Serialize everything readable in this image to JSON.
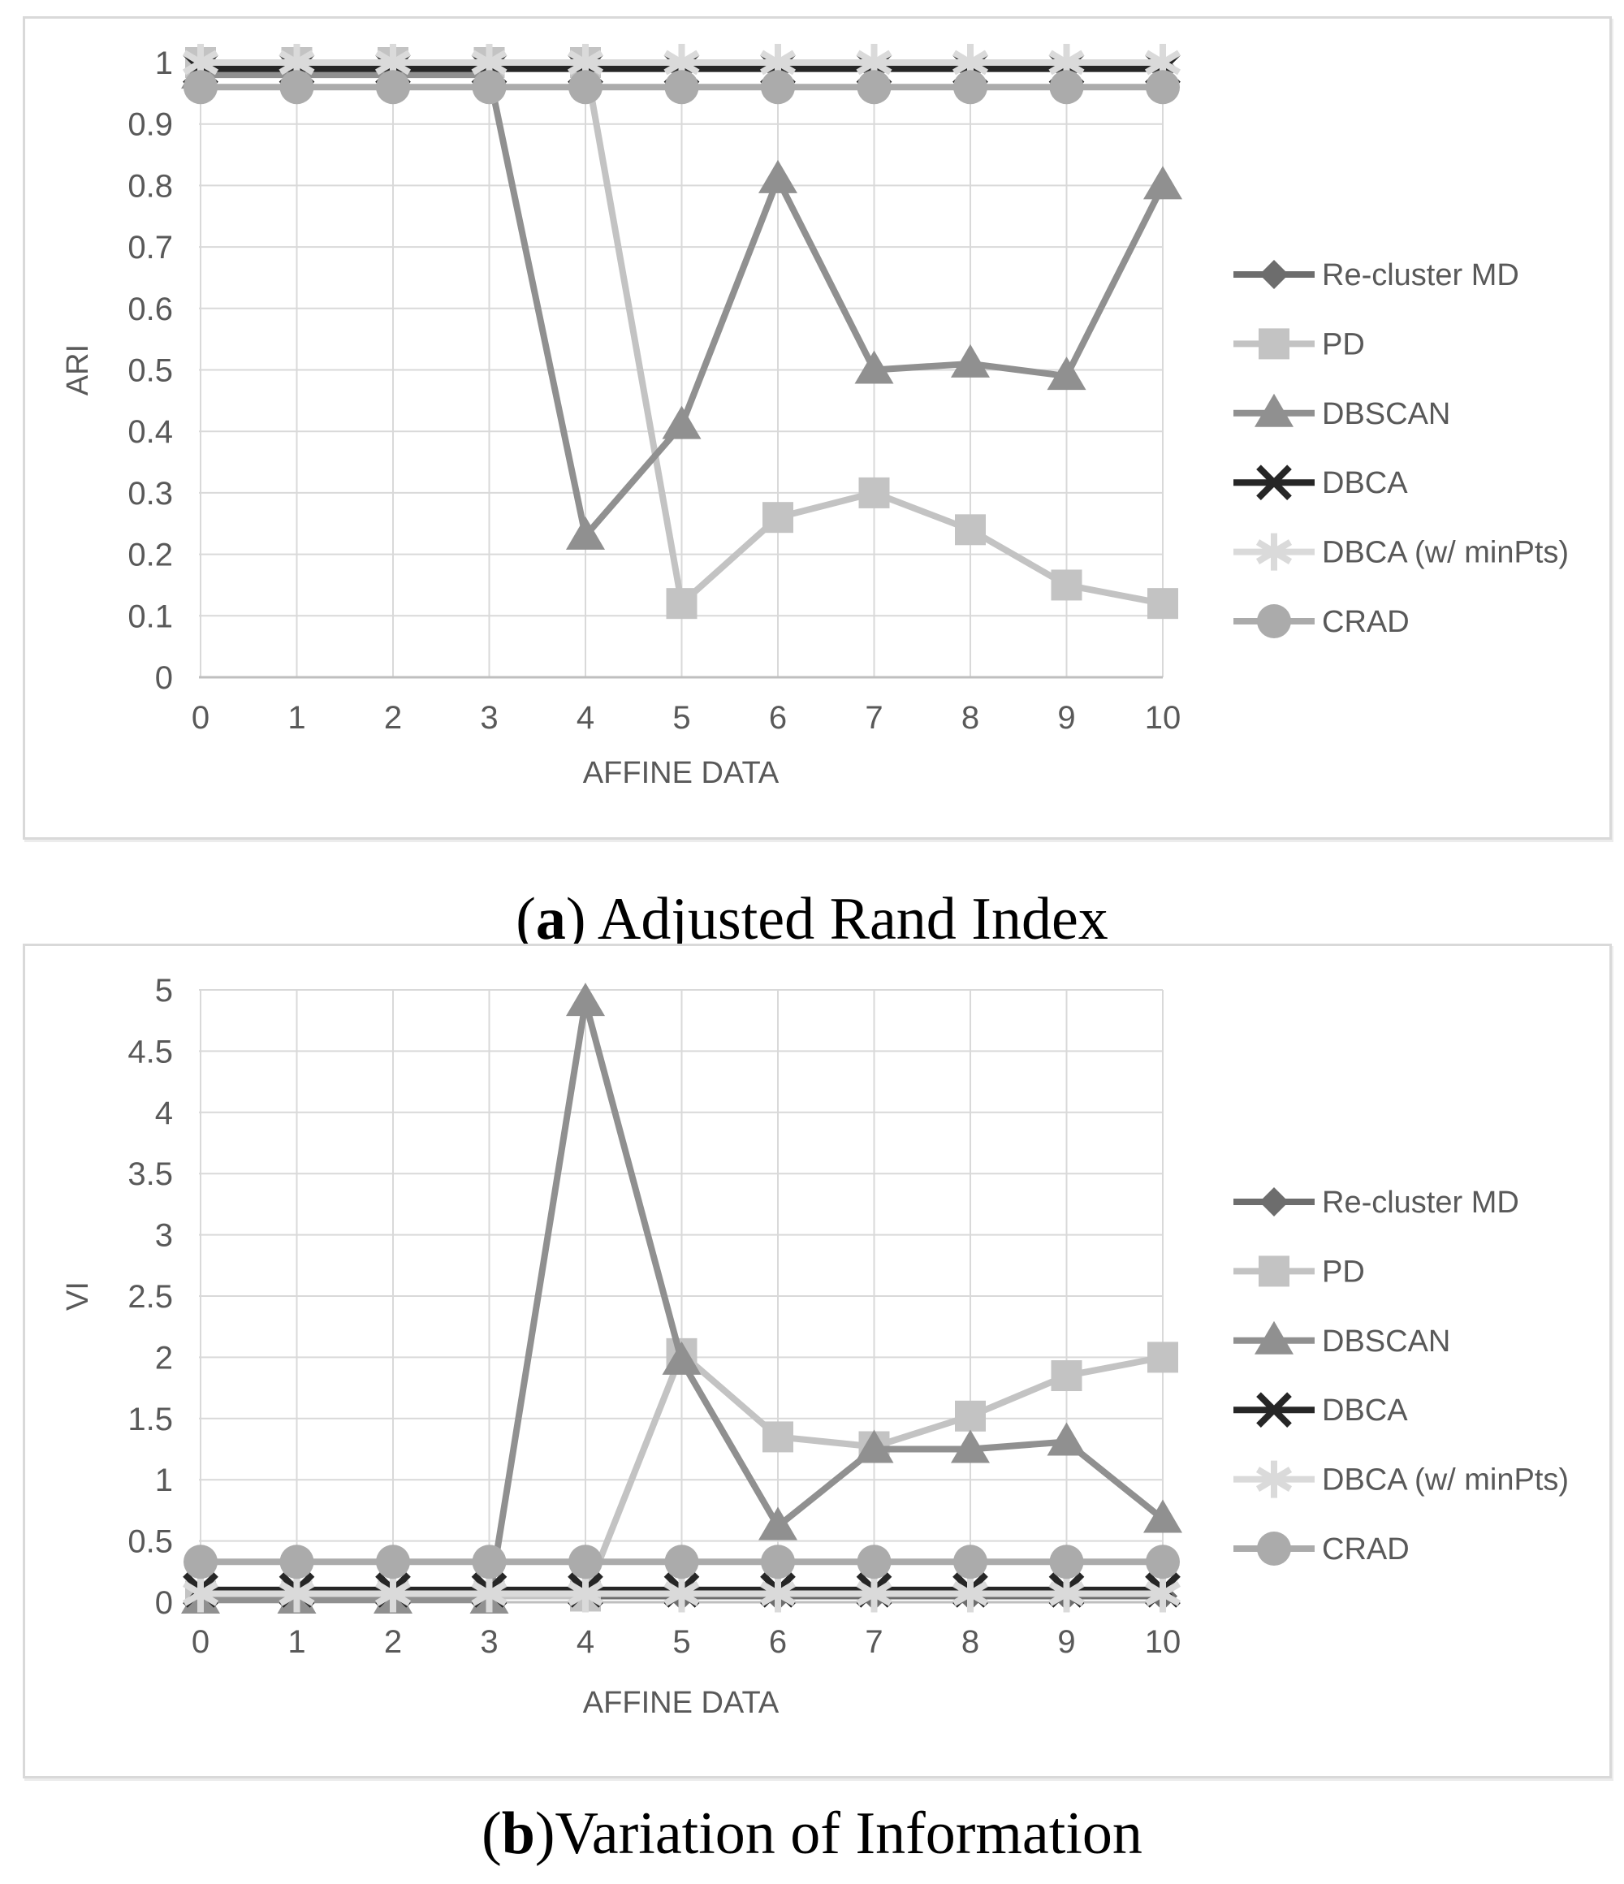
{
  "colors": {
    "grid": "#d9d9d9",
    "axis": "#bfbfbf",
    "tick_text": "#595959",
    "legend_text": "#595959",
    "caption_text": "#000000"
  },
  "captions": {
    "a": {
      "pre": "(",
      "letter": "a",
      "post": ") Adjusted Rand Index"
    },
    "b": {
      "pre": "(",
      "letter": "b",
      "post": ")Variation of Information"
    }
  },
  "chart_data": [
    {
      "type": "line",
      "title": "(a) Adjusted Rand Index",
      "xlabel": "AFFINE DATA",
      "ylabel": "ARI",
      "x": [
        0,
        1,
        2,
        3,
        4,
        5,
        6,
        7,
        8,
        9,
        10
      ],
      "xticks": [
        "0",
        "1",
        "2",
        "3",
        "4",
        "5",
        "6",
        "7",
        "8",
        "9",
        "10"
      ],
      "ylim": [
        0,
        1
      ],
      "yticks": [
        "0",
        "0.1",
        "0.2",
        "0.3",
        "0.4",
        "0.5",
        "0.6",
        "0.7",
        "0.8",
        "0.9",
        "1"
      ],
      "grid": true,
      "legend_position": "right",
      "series": [
        {
          "name": "Re-cluster MD",
          "marker": "diamond",
          "color": "#6d6d6d",
          "values": [
            0.99,
            0.99,
            0.99,
            0.99,
            0.99,
            0.99,
            0.99,
            0.99,
            0.99,
            0.99,
            0.99
          ]
        },
        {
          "name": "PD",
          "marker": "square",
          "color": "#c3c3c3",
          "values": [
            1,
            1,
            1,
            1,
            1,
            0.12,
            0.26,
            0.3,
            0.24,
            0.15,
            0.12
          ]
        },
        {
          "name": "DBSCAN",
          "marker": "triangle",
          "color": "#909090",
          "values": [
            0.98,
            0.98,
            0.98,
            0.98,
            0.23,
            0.41,
            0.81,
            0.5,
            0.51,
            0.49,
            0.8
          ]
        },
        {
          "name": "DBCA",
          "marker": "x",
          "color": "#262626",
          "values": [
            0.99,
            0.99,
            0.99,
            0.99,
            0.99,
            0.99,
            0.99,
            0.99,
            0.99,
            0.99,
            0.99
          ]
        },
        {
          "name": "DBCA (w/ minPts)",
          "marker": "asterisk",
          "color": "#dadada",
          "values": [
            1,
            1,
            1,
            1,
            1,
            1,
            1,
            1,
            1,
            1,
            1
          ]
        },
        {
          "name": "CRAD",
          "marker": "circle",
          "color": "#ababab",
          "values": [
            0.96,
            0.96,
            0.96,
            0.96,
            0.96,
            0.96,
            0.96,
            0.96,
            0.96,
            0.96,
            0.96
          ]
        }
      ]
    },
    {
      "type": "line",
      "title": "(b) Variation of Information",
      "xlabel": "AFFINE DATA",
      "ylabel": "VI",
      "x": [
        0,
        1,
        2,
        3,
        4,
        5,
        6,
        7,
        8,
        9,
        10
      ],
      "xticks": [
        "0",
        "1",
        "2",
        "3",
        "4",
        "5",
        "6",
        "7",
        "8",
        "9",
        "10"
      ],
      "ylim": [
        0,
        5
      ],
      "yticks": [
        "0",
        "0.5",
        "1",
        "1.5",
        "2",
        "2.5",
        "3",
        "3.5",
        "4",
        "4.5",
        "5"
      ],
      "grid": true,
      "legend_position": "right",
      "series": [
        {
          "name": "Re-cluster MD",
          "marker": "diamond",
          "color": "#6d6d6d",
          "values": [
            0.05,
            0.05,
            0.05,
            0.05,
            0.05,
            0.05,
            0.05,
            0.05,
            0.05,
            0.05,
            0.05
          ]
        },
        {
          "name": "PD",
          "marker": "square",
          "color": "#c3c3c3",
          "values": [
            0.05,
            0.05,
            0.05,
            0.05,
            0.05,
            2.03,
            1.35,
            1.27,
            1.52,
            1.85,
            2.0
          ]
        },
        {
          "name": "DBSCAN",
          "marker": "triangle",
          "color": "#909090",
          "values": [
            0.02,
            0.02,
            0.02,
            0.02,
            4.9,
            1.97,
            0.62,
            1.25,
            1.25,
            1.31,
            0.68
          ]
        },
        {
          "name": "DBCA",
          "marker": "x",
          "color": "#262626",
          "values": [
            0.1,
            0.1,
            0.1,
            0.1,
            0.1,
            0.1,
            0.1,
            0.1,
            0.1,
            0.1,
            0.1
          ]
        },
        {
          "name": "DBCA (w/ minPts)",
          "marker": "asterisk",
          "color": "#dadada",
          "values": [
            0.07,
            0.07,
            0.07,
            0.07,
            0.07,
            0.07,
            0.07,
            0.07,
            0.07,
            0.07,
            0.07
          ]
        },
        {
          "name": "CRAD",
          "marker": "circle",
          "color": "#ababab",
          "values": [
            0.33,
            0.33,
            0.33,
            0.33,
            0.33,
            0.33,
            0.33,
            0.33,
            0.33,
            0.33,
            0.33
          ]
        }
      ]
    }
  ]
}
